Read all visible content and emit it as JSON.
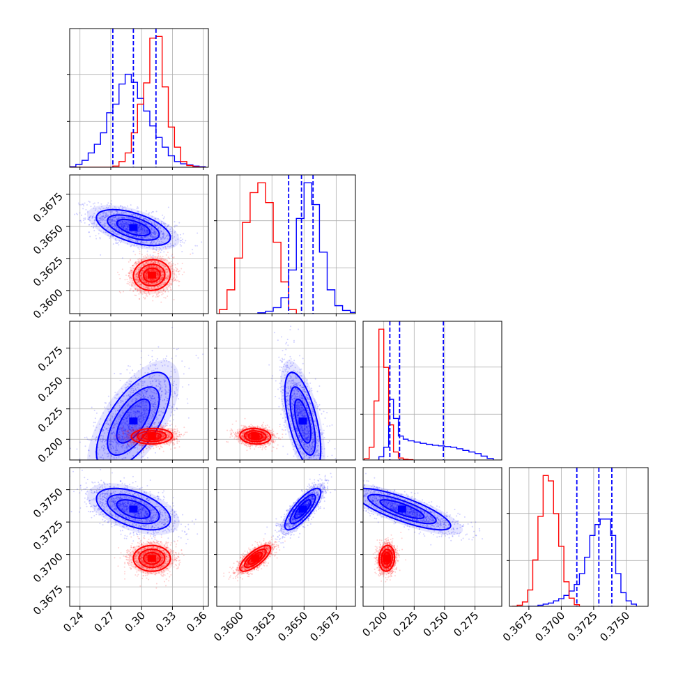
{
  "chart_data": {
    "type": "corner",
    "colors": {
      "red": "#ff0000",
      "blue": "#0000ff",
      "grid": "#b0b0b0"
    },
    "grid": true,
    "parameters": [
      {
        "index": 0,
        "range": [
          0.23,
          0.365
        ],
        "ticks": [
          0.24,
          0.27,
          0.3,
          0.33,
          0.36
        ],
        "tick_labels": [
          "0.24",
          "0.27",
          "0.30",
          "0.33",
          "0.36"
        ]
      },
      {
        "index": 1,
        "range": [
          0.3582,
          0.369
        ],
        "ticks": [
          0.36,
          0.3625,
          0.365,
          0.3675
        ],
        "tick_labels": [
          "0.3600",
          "0.3625",
          "0.3650",
          "0.3675"
        ]
      },
      {
        "index": 2,
        "range": [
          0.183,
          0.297
        ],
        "ticks": [
          0.2,
          0.225,
          0.25,
          0.275
        ],
        "tick_labels": [
          "0.200",
          "0.225",
          "0.250",
          "0.275"
        ]
      },
      {
        "index": 3,
        "range": [
          0.366,
          0.3767
        ],
        "ticks": [
          0.3675,
          0.37,
          0.3725,
          0.375
        ],
        "tick_labels": [
          "0.3675",
          "0.3700",
          "0.3725",
          "0.3750"
        ]
      }
    ],
    "quantiles_blue": [
      [
        0.272,
        0.292,
        0.314
      ],
      [
        0.3638,
        0.3648,
        0.3657
      ],
      [
        0.205,
        0.213,
        0.249
      ],
      [
        0.3712,
        0.3729,
        0.3739
      ]
    ],
    "series": [
      {
        "name": "",
        "color": "red",
        "hists": [
          {
            "edges": [
              0.23,
              0.236,
              0.242,
              0.248,
              0.254,
              0.26,
              0.266,
              0.272,
              0.278,
              0.284,
              0.29,
              0.296,
              0.302,
              0.308,
              0.314,
              0.32,
              0.326,
              0.332,
              0.338,
              0.344,
              0.35,
              0.356,
              0.362
            ],
            "counts": [
              0,
              0,
              0,
              0,
              0,
              0,
              0,
              2,
              10,
              25,
              60,
              110,
              147,
              225,
              228,
              140,
              70,
              35,
              10,
              3,
              1,
              0
            ]
          },
          {
            "edges": [
              0.3584,
              0.359,
              0.3596,
              0.3602,
              0.3608,
              0.3614,
              0.362,
              0.3626,
              0.3632,
              0.3638,
              0.3644
            ],
            "counts": [
              10,
              60,
              140,
              230,
              305,
              330,
              280,
              180,
              80,
              10
            ]
          },
          {
            "edges": [
              0.184,
              0.188,
              0.192,
              0.196,
              0.2,
              0.204,
              0.208,
              0.212,
              0.216,
              0.22,
              0.224
            ],
            "counts": [
              4,
              40,
              185,
              410,
              290,
              110,
              25,
              6,
              2,
              1
            ]
          },
          {
            "edges": [
              0.3662,
              0.3666,
              0.367,
              0.3674,
              0.3678,
              0.3682,
              0.3686,
              0.369,
              0.3694,
              0.3698,
              0.3702,
              0.3706,
              0.371,
              0.3714
            ],
            "counts": [
              0,
              2,
              8,
              30,
              85,
              165,
              240,
              230,
              170,
              110,
              45,
              15,
              3
            ]
          }
        ],
        "blobs": [
          {
            "cx": 0.31,
            "cy": 0.3612,
            "sx": 0.009,
            "sy": 0.0006,
            "rho": 0.05
          },
          {
            "cx": 0.31,
            "cy": 0.2025,
            "sx": 0.01,
            "sy": 0.0032,
            "rho": 0.05
          },
          {
            "cx": 0.3612,
            "cy": 0.2025,
            "sx": 0.0006,
            "sy": 0.0032,
            "rho": -0.1
          },
          {
            "cx": 0.31,
            "cy": 0.3697,
            "sx": 0.009,
            "sy": 0.0005,
            "rho": 0.0
          },
          {
            "cx": 0.3612,
            "cy": 0.3697,
            "sx": 0.0006,
            "sy": 0.0005,
            "rho": 0.75
          },
          {
            "cx": 0.2025,
            "cy": 0.3697,
            "sx": 0.0032,
            "sy": 0.0005,
            "rho": 0.1
          }
        ]
      },
      {
        "name": "",
        "color": "blue",
        "hists": [
          {
            "edges": [
              0.23,
              0.236,
              0.242,
              0.248,
              0.254,
              0.26,
              0.266,
              0.272,
              0.278,
              0.284,
              0.29,
              0.296,
              0.302,
              0.308,
              0.314,
              0.32,
              0.326,
              0.332,
              0.338,
              0.344,
              0.35,
              0.356,
              0.362
            ],
            "counts": [
              1,
              5,
              12,
              25,
              40,
              60,
              95,
              110,
              145,
              162,
              148,
              120,
              98,
              72,
              52,
              35,
              20,
              10,
              6,
              4,
              2,
              1
            ]
          },
          {
            "edges": [
              0.3614,
              0.362,
              0.3626,
              0.3632,
              0.3638,
              0.3644,
              0.365,
              0.3656,
              0.3662,
              0.3668,
              0.3674,
              0.368,
              0.3686,
              0.3692
            ],
            "counts": [
              2,
              6,
              15,
              40,
              110,
              240,
              330,
              275,
              155,
              60,
              20,
              8,
              3
            ]
          },
          {
            "edges": [
              0.196,
              0.2,
              0.204,
              0.208,
              0.212,
              0.216,
              0.22,
              0.225,
              0.23,
              0.235,
              0.24,
              0.245,
              0.25,
              0.255,
              0.26,
              0.265,
              0.27,
              0.275,
              0.28,
              0.285,
              0.29
            ],
            "counts": [
              10,
              40,
              190,
              130,
              75,
              65,
              60,
              56,
              52,
              49,
              46,
              44,
              42,
              40,
              35,
              30,
              25,
              20,
              12,
              5
            ]
          },
          {
            "edges": [
              0.3674,
              0.3678,
              0.3682,
              0.3686,
              0.369,
              0.3694,
              0.3698,
              0.3702,
              0.3706,
              0.371,
              0.3714,
              0.3718,
              0.3722,
              0.3726,
              0.373,
              0.3734,
              0.3738,
              0.3742,
              0.3746,
              0.375,
              0.3754,
              0.3758
            ],
            "counts": [
              0,
              0,
              2,
              4,
              6,
              10,
              14,
              20,
              28,
              40,
              60,
              90,
              130,
              150,
              160,
              160,
              130,
              60,
              25,
              10,
              4
            ]
          }
        ],
        "blobs": [
          {
            "cx": 0.292,
            "cy": 0.3649,
            "sx": 0.018,
            "sy": 0.0007,
            "rho": -0.55
          },
          {
            "cx": 0.292,
            "cy": 0.215,
            "sx": 0.018,
            "sy": 0.02,
            "rho": 0.65
          },
          {
            "cx": 0.3649,
            "cy": 0.215,
            "sx": 0.0007,
            "sy": 0.02,
            "rho": -0.6
          },
          {
            "cx": 0.292,
            "cy": 0.3735,
            "sx": 0.018,
            "sy": 0.0008,
            "rho": -0.5
          },
          {
            "cx": 0.3649,
            "cy": 0.3735,
            "sx": 0.0007,
            "sy": 0.0008,
            "rho": 0.8
          },
          {
            "cx": 0.215,
            "cy": 0.3735,
            "sx": 0.02,
            "sy": 0.0008,
            "rho": -0.8
          }
        ]
      }
    ]
  }
}
